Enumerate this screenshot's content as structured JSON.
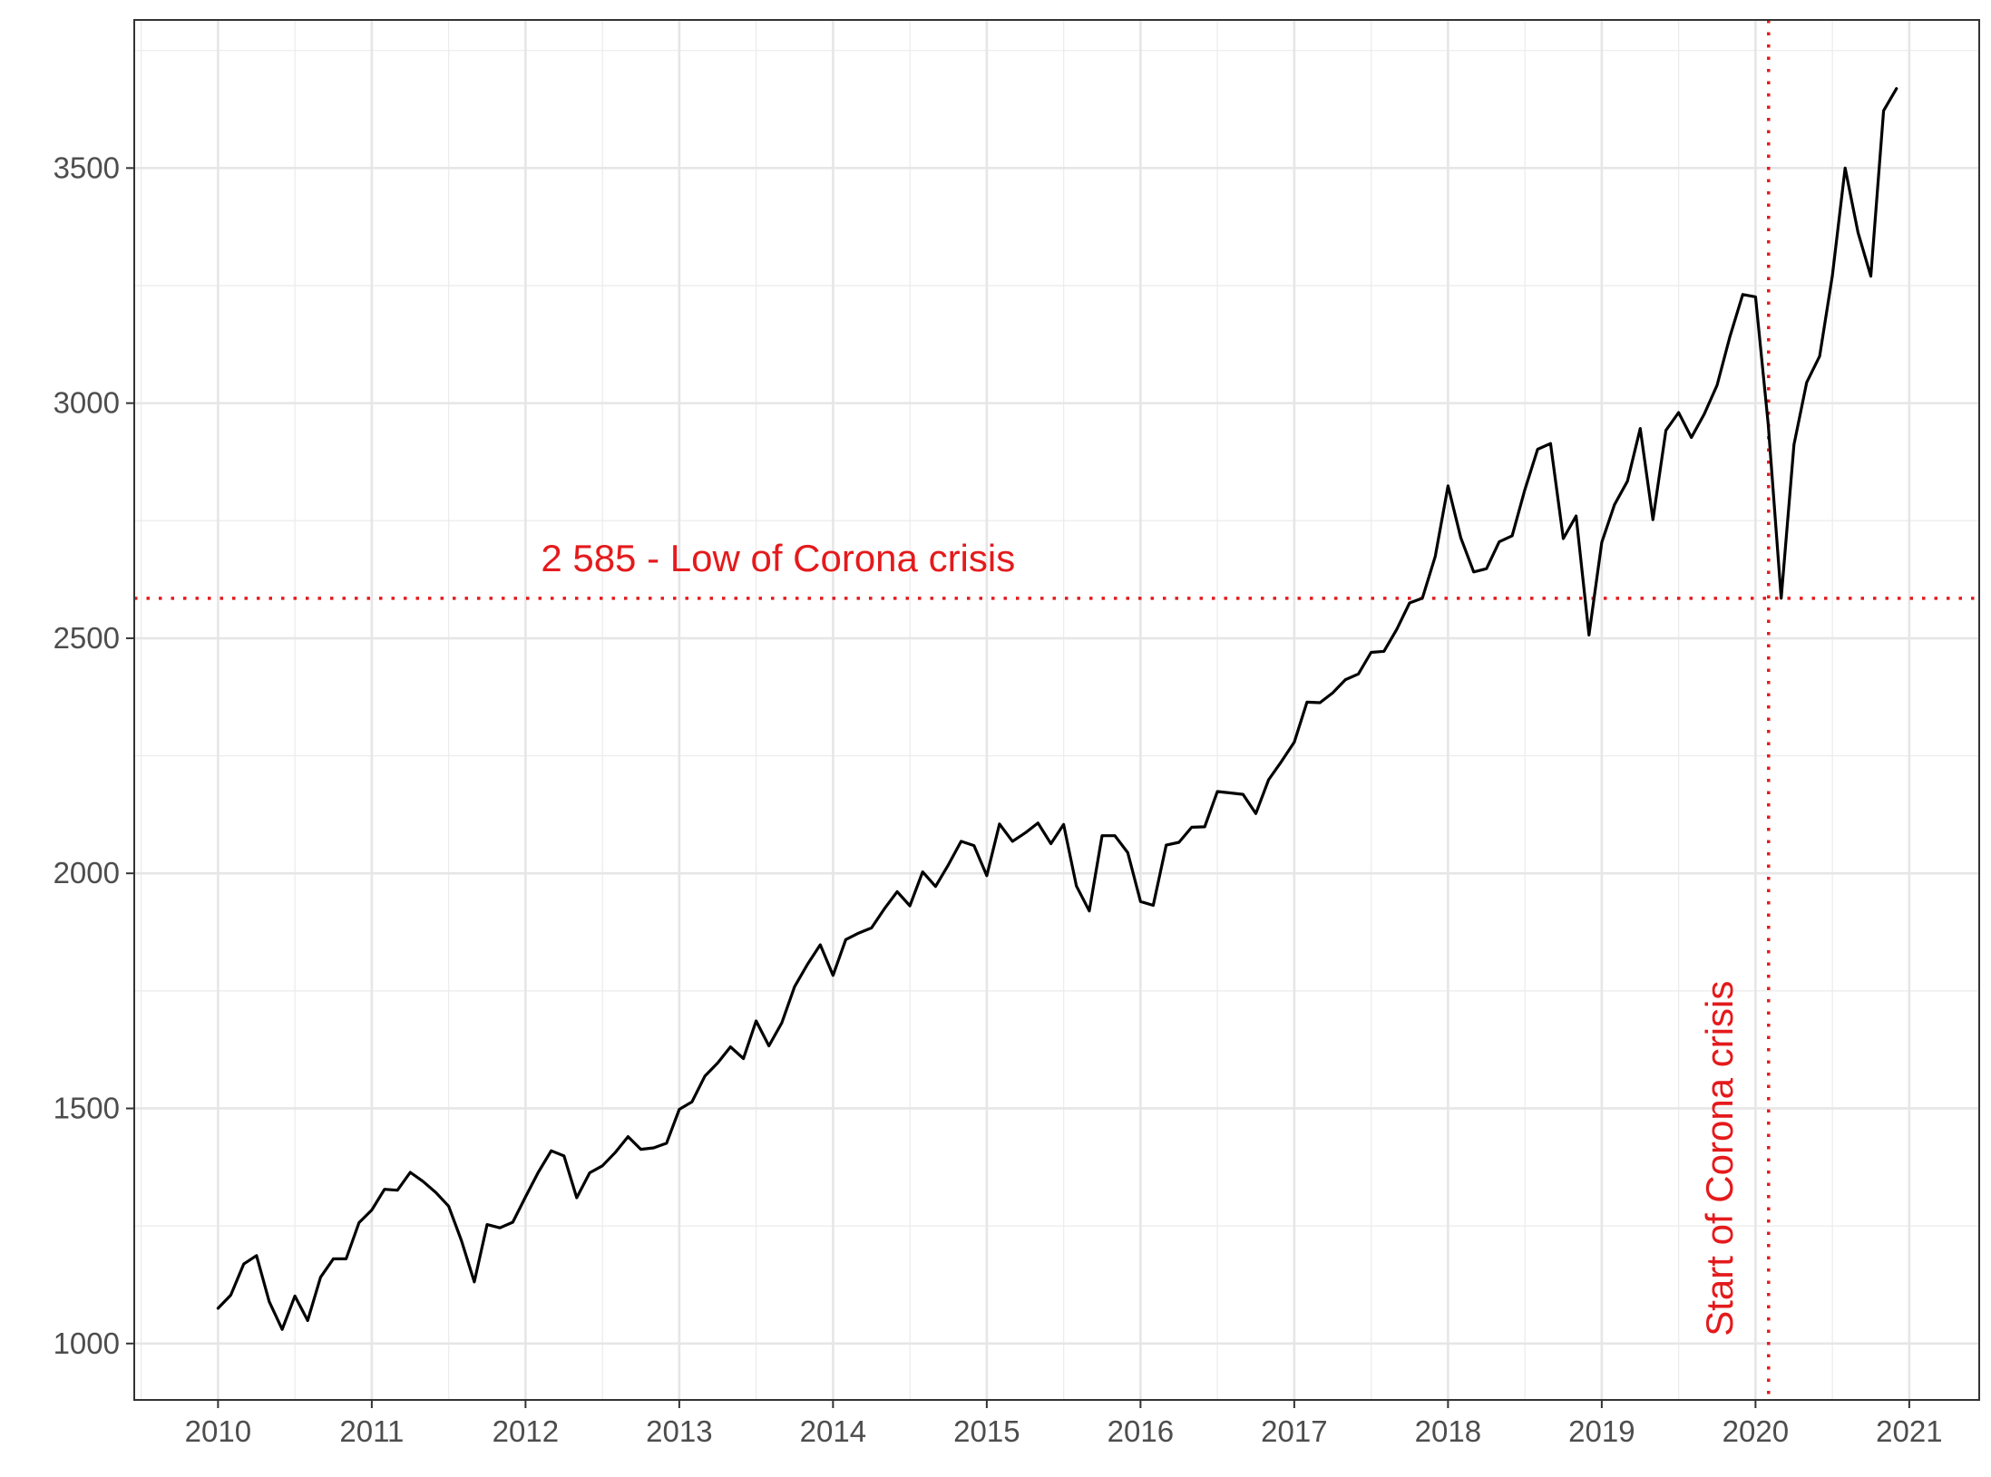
{
  "chart_data": {
    "type": "line",
    "title": "",
    "xlabel": "",
    "ylabel": "",
    "xlim": [
      2009.455,
      2021.455
    ],
    "ylim": [
      880,
      3815
    ],
    "x_ticks": [
      "2010",
      "2011",
      "2012",
      "2013",
      "2014",
      "2015",
      "2016",
      "2017",
      "2018",
      "2019",
      "2020",
      "2021"
    ],
    "y_ticks": [
      "1000",
      "1500",
      "2000",
      "2500",
      "3000",
      "3500"
    ],
    "grid": true,
    "legend": "none",
    "line_color": "#000000",
    "annotation_color": "#e41a1c",
    "series": [
      {
        "x": [
          2010.0,
          2010.083,
          2010.167,
          2010.25,
          2010.333,
          2010.417,
          2010.5,
          2010.583,
          2010.667,
          2010.75,
          2010.833,
          2010.917,
          2011.0,
          2011.083,
          2011.167,
          2011.25,
          2011.333,
          2011.417,
          2011.5,
          2011.583,
          2011.667,
          2011.75,
          2011.833,
          2011.917,
          2012.0,
          2012.083,
          2012.167,
          2012.25,
          2012.333,
          2012.417,
          2012.5,
          2012.583,
          2012.667,
          2012.75,
          2012.833,
          2012.917,
          2013.0,
          2013.083,
          2013.167,
          2013.25,
          2013.333,
          2013.417,
          2013.5,
          2013.583,
          2013.667,
          2013.75,
          2013.833,
          2013.917,
          2014.0,
          2014.083,
          2014.167,
          2014.25,
          2014.333,
          2014.417,
          2014.5,
          2014.583,
          2014.667,
          2014.75,
          2014.833,
          2014.917,
          2015.0,
          2015.083,
          2015.167,
          2015.25,
          2015.333,
          2015.417,
          2015.5,
          2015.583,
          2015.667,
          2015.75,
          2015.833,
          2015.917,
          2016.0,
          2016.083,
          2016.167,
          2016.25,
          2016.333,
          2016.417,
          2016.5,
          2016.583,
          2016.667,
          2016.75,
          2016.833,
          2016.917,
          2017.0,
          2017.083,
          2017.167,
          2017.25,
          2017.333,
          2017.417,
          2017.5,
          2017.583,
          2017.667,
          2017.75,
          2017.833,
          2017.917,
          2018.0,
          2018.083,
          2018.167,
          2018.25,
          2018.333,
          2018.417,
          2018.5,
          2018.583,
          2018.667,
          2018.75,
          2018.833,
          2018.917,
          2019.0,
          2019.083,
          2019.167,
          2019.25,
          2019.333,
          2019.417,
          2019.5,
          2019.583,
          2019.667,
          2019.75,
          2019.833,
          2019.917,
          2020.0,
          2020.083,
          2020.167,
          2020.25,
          2020.333,
          2020.417,
          2020.5,
          2020.583,
          2020.667,
          2020.75,
          2020.833,
          2020.917
        ],
        "y": [
          1075,
          1103,
          1169,
          1187,
          1089,
          1030,
          1101,
          1049,
          1141,
          1180,
          1180,
          1257,
          1284,
          1328,
          1326,
          1364,
          1345,
          1321,
          1292,
          1219,
          1131,
          1253,
          1246,
          1258,
          1312,
          1364,
          1410,
          1399,
          1310,
          1363,
          1378,
          1406,
          1440,
          1413,
          1416,
          1426,
          1498,
          1514,
          1569,
          1597,
          1631,
          1606,
          1686,
          1633,
          1682,
          1759,
          1806,
          1848,
          1783,
          1859,
          1873,
          1884,
          1924,
          1961,
          1931,
          2003,
          1972,
          2018,
          2068,
          2059,
          1995,
          2105,
          2068,
          2086,
          2107,
          2063,
          2104,
          1973,
          1920,
          2080,
          2080,
          2044,
          1940,
          1932,
          2060,
          2066,
          2098,
          2099,
          2174,
          2171,
          2168,
          2127,
          2199,
          2238,
          2279,
          2364,
          2363,
          2384,
          2412,
          2424,
          2470,
          2472,
          2519,
          2575,
          2585,
          2674,
          2824,
          2714,
          2641,
          2648,
          2705,
          2718,
          2816,
          2902,
          2914,
          2712,
          2760,
          2507,
          2704,
          2784,
          2834,
          2946,
          2752,
          2942,
          2980,
          2927,
          2977,
          3038,
          3141,
          3231,
          3226,
          2955,
          2585,
          2912,
          3044,
          3100,
          3271,
          3500,
          3363,
          3270,
          3622,
          3669
        ]
      }
    ],
    "annotations": {
      "hline_value": 2585,
      "hline_label": "2 585 - Low of Corona crisis",
      "vline_value": 2020.085,
      "vline_label": "Start of Corona crisis"
    }
  }
}
